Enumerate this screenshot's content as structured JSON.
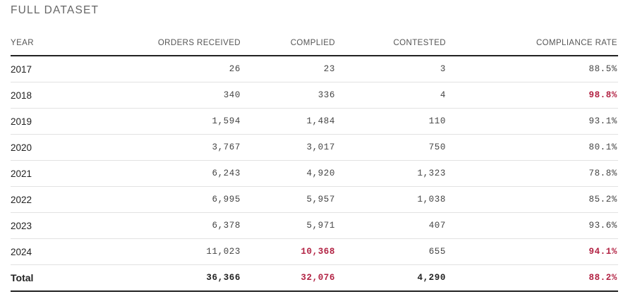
{
  "section_title": "FULL DATASET",
  "accent_color": "#b22243",
  "columns": [
    "YEAR",
    "ORDERS RECEIVED",
    "COMPLIED",
    "CONTESTED",
    "COMPLIANCE RATE"
  ],
  "rows": [
    {
      "year": "2017",
      "orders": "26",
      "complied": "23",
      "contested": "3",
      "rate": "88.5%",
      "highlight": []
    },
    {
      "year": "2018",
      "orders": "340",
      "complied": "336",
      "contested": "4",
      "rate": "98.8%",
      "highlight": [
        "rate"
      ]
    },
    {
      "year": "2019",
      "orders": "1,594",
      "complied": "1,484",
      "contested": "110",
      "rate": "93.1%",
      "highlight": []
    },
    {
      "year": "2020",
      "orders": "3,767",
      "complied": "3,017",
      "contested": "750",
      "rate": "80.1%",
      "highlight": []
    },
    {
      "year": "2021",
      "orders": "6,243",
      "complied": "4,920",
      "contested": "1,323",
      "rate": "78.8%",
      "highlight": []
    },
    {
      "year": "2022",
      "orders": "6,995",
      "complied": "5,957",
      "contested": "1,038",
      "rate": "85.2%",
      "highlight": []
    },
    {
      "year": "2023",
      "orders": "6,378",
      "complied": "5,971",
      "contested": "407",
      "rate": "93.6%",
      "highlight": []
    },
    {
      "year": "2024",
      "orders": "11,023",
      "complied": "10,368",
      "contested": "655",
      "rate": "94.1%",
      "highlight": [
        "complied",
        "rate"
      ]
    }
  ],
  "total": {
    "year": "Total",
    "orders": "36,366",
    "complied": "32,076",
    "contested": "4,290",
    "rate": "88.2%",
    "highlight": [
      "complied",
      "rate"
    ]
  }
}
